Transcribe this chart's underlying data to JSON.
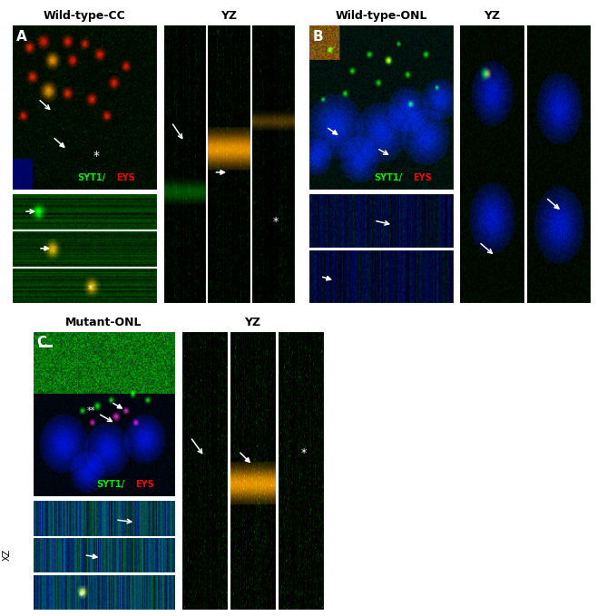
{
  "background_color": "#ffffff",
  "panel_A_title": "Wild-type-CC",
  "panel_A_YZ_title": "YZ",
  "panel_B_title": "Wild-type-ONL",
  "panel_B_YZ_title": "YZ",
  "panel_C_title": "Mutant-ONL",
  "panel_C_YZ_title": "YZ",
  "label_A": "A",
  "label_B": "B",
  "label_C": "C",
  "label_XZ": "XZ",
  "channel_label_SYT1": "SYT1",
  "channel_label_EYS": "EYS",
  "font_title": 9,
  "font_label": 10,
  "font_channel": 7,
  "font_xz": 8
}
